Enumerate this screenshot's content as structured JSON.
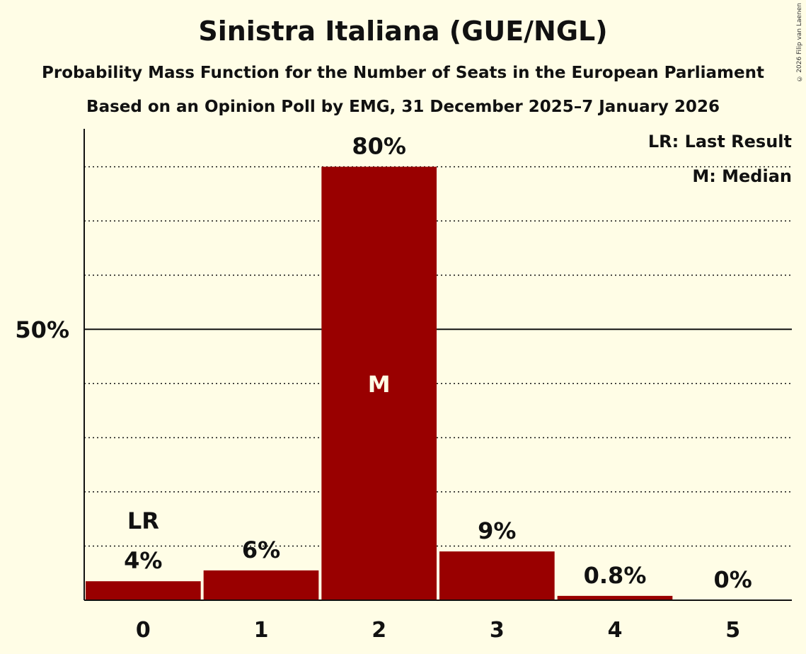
{
  "chart_data": {
    "type": "bar",
    "title": "Sinistra Italiana (GUE/NGL)",
    "subtitle": "Probability Mass Function for the Number of Seats in the European Parliament",
    "subtitle2": "Based on an Opinion Poll by EMG, 31 December 2025–7 January 2026",
    "copyright": "© 2026 Filip van Laenen",
    "categories": [
      "0",
      "1",
      "2",
      "3",
      "4",
      "5"
    ],
    "values": [
      3.5,
      5.5,
      80,
      9,
      0.8,
      0
    ],
    "labels": [
      "4%",
      "6%",
      "80%",
      "9%",
      "0.8%",
      "0%"
    ],
    "ylim": [
      0,
      87
    ],
    "y_major_tick": 50,
    "y_major_label": "50%",
    "y_minor_ticks": [
      10,
      20,
      30,
      40,
      60,
      70,
      80
    ],
    "last_result_index": 0,
    "last_result_marker": "LR",
    "median_index": 2,
    "median_marker": "M",
    "legend": [
      "LR: Last Result",
      "M: Median"
    ],
    "bar_color": "#990000"
  }
}
